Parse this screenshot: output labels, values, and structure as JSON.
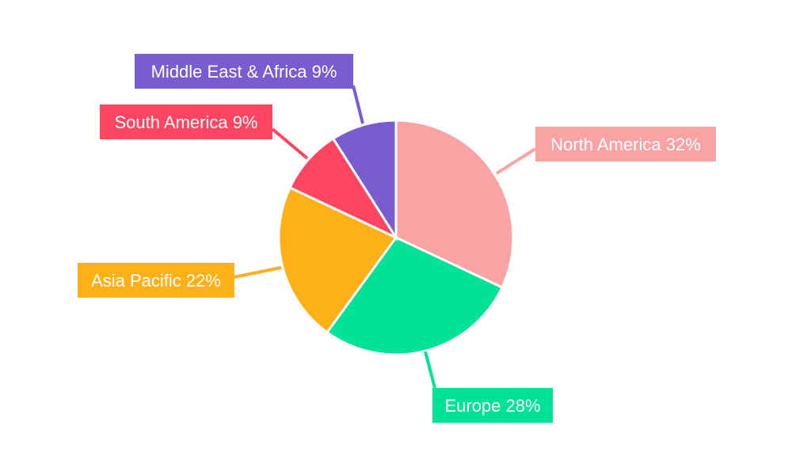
{
  "chart_data": {
    "type": "pie",
    "title": "",
    "start_angle": "12 o'clock, clockwise",
    "categories": [
      "North America",
      "Europe",
      "Asia Pacific",
      "South America",
      "Middle East & Africa"
    ],
    "values": [
      32,
      28,
      22,
      9,
      9
    ],
    "unit": "%",
    "labels": [
      "North America 32%",
      "Europe 28%",
      "Asia Pacific 22%",
      "South America 9%",
      "Middle East & Africa 9%"
    ],
    "colors": [
      "#f9a3a4",
      "#00e396",
      "#feb019",
      "#ff4560",
      "#775dd0"
    ],
    "legend": "none"
  }
}
